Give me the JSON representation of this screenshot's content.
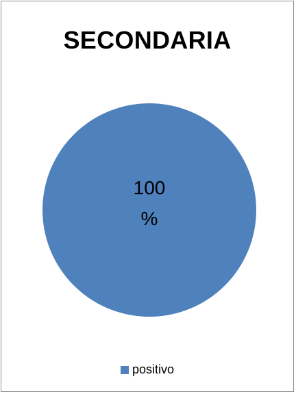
{
  "chart_data": {
    "type": "pie",
    "title": "SECONDARIA",
    "series": [
      {
        "name": "positivo",
        "value": 100,
        "label_line1": "100",
        "label_line2": "%",
        "color": "#4f81bd"
      }
    ],
    "legend": {
      "placement": "bottom",
      "entries": [
        "positivo"
      ]
    }
  },
  "colors": {
    "slice": "#4f81bd",
    "border": "#8c8c8c",
    "text": "#000000"
  }
}
